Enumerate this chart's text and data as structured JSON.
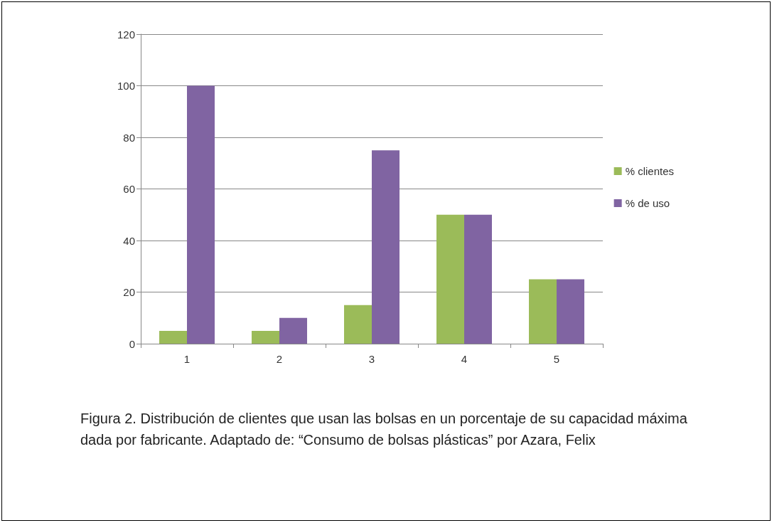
{
  "chart_data": {
    "type": "bar",
    "categories": [
      "1",
      "2",
      "3",
      "4",
      "5"
    ],
    "series": [
      {
        "name": "% clientes",
        "color": "#9bbb59",
        "values": [
          5,
          5,
          15,
          50,
          25
        ]
      },
      {
        "name": "% de uso",
        "color": "#8064a2",
        "values": [
          100,
          10,
          75,
          50,
          25
        ]
      }
    ],
    "ylim": [
      0,
      120
    ],
    "yticks": [
      0,
      20,
      40,
      60,
      80,
      100,
      120
    ],
    "grid": "y",
    "legend": "right",
    "annotations": [
      "Figura 2. Distribución de clientes que usan las bolsas en un porcentaje de su capacidad máxima dada por fabricante. Adaptado de: “Consumo de bolsas plásticas” por Azara, Felix"
    ]
  }
}
